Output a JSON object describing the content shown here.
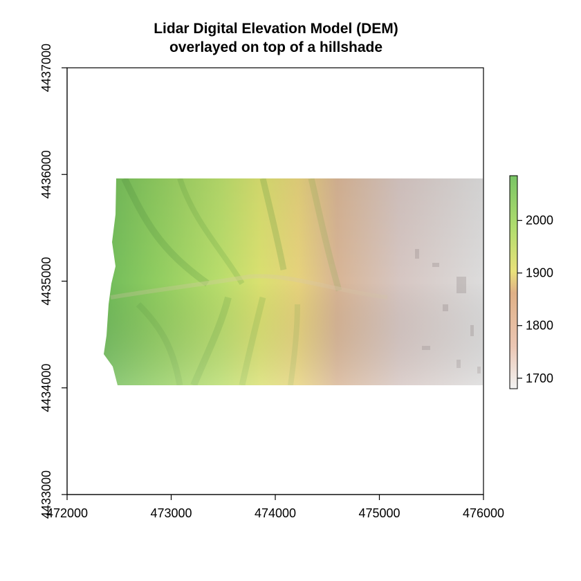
{
  "chart_data": {
    "type": "heatmap",
    "title_line1": "Lidar Digital Elevation Model (DEM)",
    "title_line2": "overlayed on top of a hillshade",
    "xlim": [
      472000,
      476000
    ],
    "ylim": [
      4433000,
      4437000
    ],
    "x_ticks": [
      472000,
      473000,
      474000,
      475000,
      476000
    ],
    "y_ticks": [
      4433000,
      4434000,
      4435000,
      4436000,
      4437000
    ],
    "x_tick_labels": [
      "472000",
      "473000",
      "474000",
      "475000",
      "476000"
    ],
    "y_tick_labels": [
      "4433000",
      "4434000",
      "4435000",
      "4436000",
      "4437000"
    ],
    "raster_extent": {
      "xmin": 472350,
      "xmax": 476000,
      "ymin": 4434000,
      "ymax": 4436000
    },
    "legend": {
      "placement": "right",
      "range": [
        1680,
        2085
      ],
      "ticks": [
        1700,
        1800,
        1900,
        2000
      ],
      "tick_labels": [
        "1700",
        "1800",
        "1900",
        "2000"
      ],
      "colors": [
        "#f2f2f2",
        "#ebc6b3",
        "#dfb086",
        "#e9e17a",
        "#b2dd6e",
        "#79c465"
      ]
    }
  }
}
